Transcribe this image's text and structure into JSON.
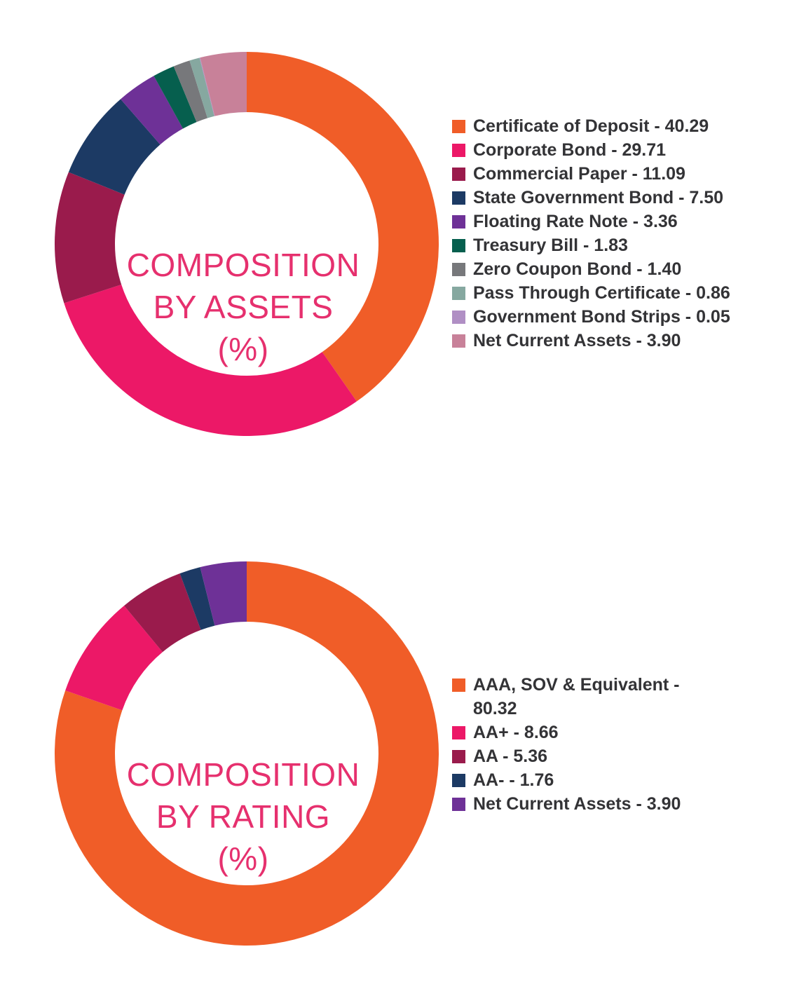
{
  "chart_data": [
    {
      "type": "pie",
      "variant": "donut",
      "center_text": [
        "COMPOSITION",
        "BY ASSETS",
        "(%)"
      ],
      "series": [
        {
          "label": "Certificate of Deposit",
          "value": 40.29,
          "legend": "Certificate of Deposit - 40.29",
          "color": "#f05d28"
        },
        {
          "label": "Corporate Bond",
          "value": 29.71,
          "legend": "Corporate Bond - 29.71",
          "color": "#ec1867"
        },
        {
          "label": "Commercial Paper",
          "value": 11.09,
          "legend": "Commercial Paper - 11.09",
          "color": "#9a1b4c"
        },
        {
          "label": "State Government Bond",
          "value": 7.5,
          "legend": "State Government Bond - 7.50",
          "color": "#1c3a64"
        },
        {
          "label": "Floating Rate Note",
          "value": 3.36,
          "legend": "Floating Rate Note - 3.36",
          "color": "#6e3197"
        },
        {
          "label": "Treasury Bill",
          "value": 1.83,
          "legend": "Treasury Bill - 1.83",
          "color": "#065f4e"
        },
        {
          "label": "Zero Coupon Bond",
          "value": 1.4,
          "legend": "Zero Coupon Bond - 1.40",
          "color": "#77787b"
        },
        {
          "label": "Pass Through Certificate",
          "value": 0.86,
          "legend": "Pass Through Certificate - 0.86",
          "color": "#86a8a0"
        },
        {
          "label": "Government Bond Strips",
          "value": 0.05,
          "legend": "Government Bond Strips - 0.05",
          "color": "#b08fc4"
        },
        {
          "label": "Net Current Assets",
          "value": 3.9,
          "legend": "Net Current Assets - 3.90",
          "color": "#c88199"
        }
      ],
      "start_angle_deg": 0,
      "direction": "clockwise"
    },
    {
      "type": "pie",
      "variant": "donut",
      "center_text": [
        "COMPOSITION",
        "BY RATING",
        "(%)"
      ],
      "series": [
        {
          "label": "AAA, SOV & Equivalent",
          "value": 80.32,
          "legend": "AAA, SOV & Equivalent - 80.32",
          "color": "#f05d28"
        },
        {
          "label": "AA+",
          "value": 8.66,
          "legend": "AA+ - 8.66",
          "color": "#ec1867"
        },
        {
          "label": "AA",
          "value": 5.36,
          "legend": "AA - 5.36",
          "color": "#9a1b4c"
        },
        {
          "label": "AA-",
          "value": 1.76,
          "legend": "AA- - 1.76",
          "color": "#1c3a64"
        },
        {
          "label": "Net Current Assets",
          "value": 3.9,
          "legend": "Net Current Assets - 3.90",
          "color": "#6e3197"
        }
      ],
      "start_angle_deg": 0,
      "direction": "clockwise"
    }
  ]
}
